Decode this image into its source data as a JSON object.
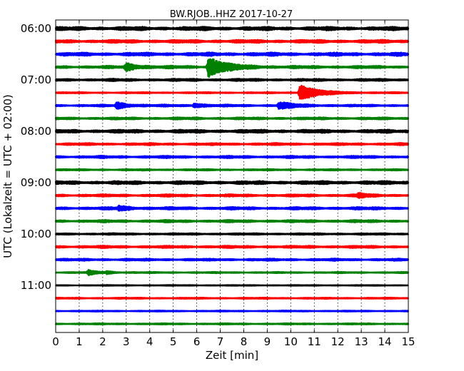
{
  "chart_data": {
    "type": "line",
    "title": "BW.RJOB..HHZ 2017-10-27",
    "xlabel": "Zeit  [min]",
    "ylabel": "UTC (Lokalzeit = UTC + 02:00)",
    "xlim": [
      0,
      15
    ],
    "x_ticks": [
      "0",
      "1",
      "2",
      "3",
      "4",
      "5",
      "6",
      "7",
      "8",
      "9",
      "10",
      "11",
      "12",
      "13",
      "14",
      "15"
    ],
    "y_tick_labels": [
      "06:00",
      "07:00",
      "08:00",
      "09:00",
      "10:00",
      "11:00"
    ],
    "grid": true,
    "trace_colors": [
      "#000000",
      "#ff0000",
      "#0000ff",
      "#008000"
    ],
    "trace_start_times": [
      "06:00",
      "06:15",
      "06:30",
      "06:45",
      "07:00",
      "07:15",
      "07:30",
      "07:45",
      "08:00",
      "08:15",
      "08:30",
      "08:45",
      "09:00",
      "09:15",
      "09:30",
      "09:45",
      "10:00",
      "10:15",
      "10:30",
      "10:45",
      "11:00",
      "11:15",
      "11:30",
      "11:45"
    ],
    "trace_base_amplitude": [
      0.8,
      0.7,
      0.75,
      0.6,
      0.55,
      0.3,
      0.45,
      0.5,
      0.75,
      0.5,
      0.55,
      0.35,
      0.75,
      0.55,
      0.6,
      0.55,
      0.4,
      0.55,
      0.5,
      0.3,
      0.2,
      0.3,
      0.25,
      0.3
    ],
    "events": [
      {
        "trace": 3,
        "minute": 3.0,
        "amplitude": 1.6,
        "duration": 0.5
      },
      {
        "trace": 3,
        "minute": 6.5,
        "amplitude": 4.5,
        "duration": 0.7
      },
      {
        "trace": 5,
        "minute": 10.4,
        "amplitude": 3.6,
        "duration": 0.7
      },
      {
        "trace": 6,
        "minute": 2.6,
        "amplitude": 1.4,
        "duration": 0.5
      },
      {
        "trace": 6,
        "minute": 5.9,
        "amplitude": 1.0,
        "duration": 0.4
      },
      {
        "trace": 6,
        "minute": 9.5,
        "amplitude": 1.6,
        "duration": 0.6
      },
      {
        "trace": 13,
        "minute": 12.9,
        "amplitude": 1.0,
        "duration": 0.3
      },
      {
        "trace": 14,
        "minute": 2.7,
        "amplitude": 1.0,
        "duration": 0.4
      },
      {
        "trace": 19,
        "minute": 1.4,
        "amplitude": 1.0,
        "duration": 0.4
      },
      {
        "trace": 19,
        "minute": 2.2,
        "amplitude": 0.6,
        "duration": 0.2
      }
    ]
  }
}
